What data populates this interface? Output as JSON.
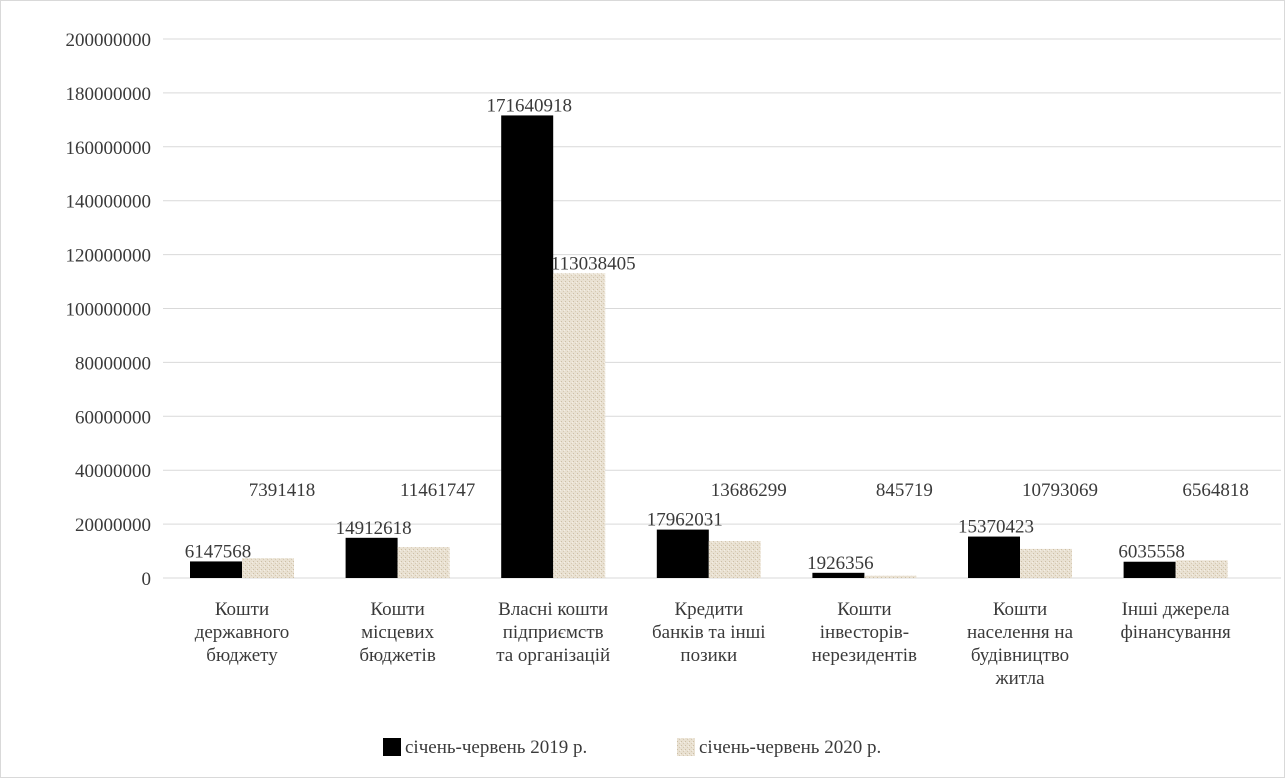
{
  "chart_data": {
    "type": "bar",
    "categories": [
      [
        "Кошти",
        "державного",
        "бюджету"
      ],
      [
        "Кошти",
        "місцевих",
        "бюджетів"
      ],
      [
        "Власні кошти",
        "підприємств",
        "та організацій"
      ],
      [
        "Кредити",
        "банків та інші",
        "позики"
      ],
      [
        "Кошти",
        "інвесторів-",
        "нерезидентів"
      ],
      [
        "Кошти",
        "населення на",
        "будівництво",
        "житла"
      ],
      [
        "Інші джерела",
        "фінансування"
      ]
    ],
    "series": [
      {
        "name": "січень-червень 2019 р.",
        "color": "#000000",
        "values": [
          6147568,
          14912618,
          171640918,
          17962031,
          1926356,
          15370423,
          6035558
        ]
      },
      {
        "name": "січень-червень 2020 р.",
        "color": "#e6dccb",
        "values": [
          7391418,
          11461747,
          113038405,
          13686299,
          845719,
          10793069,
          6564818
        ]
      }
    ],
    "ylim": [
      0,
      200000000
    ],
    "yticks": [
      0,
      20000000,
      40000000,
      60000000,
      80000000,
      100000000,
      120000000,
      140000000,
      160000000,
      180000000,
      200000000
    ],
    "grid": true,
    "legend": "bottom"
  }
}
